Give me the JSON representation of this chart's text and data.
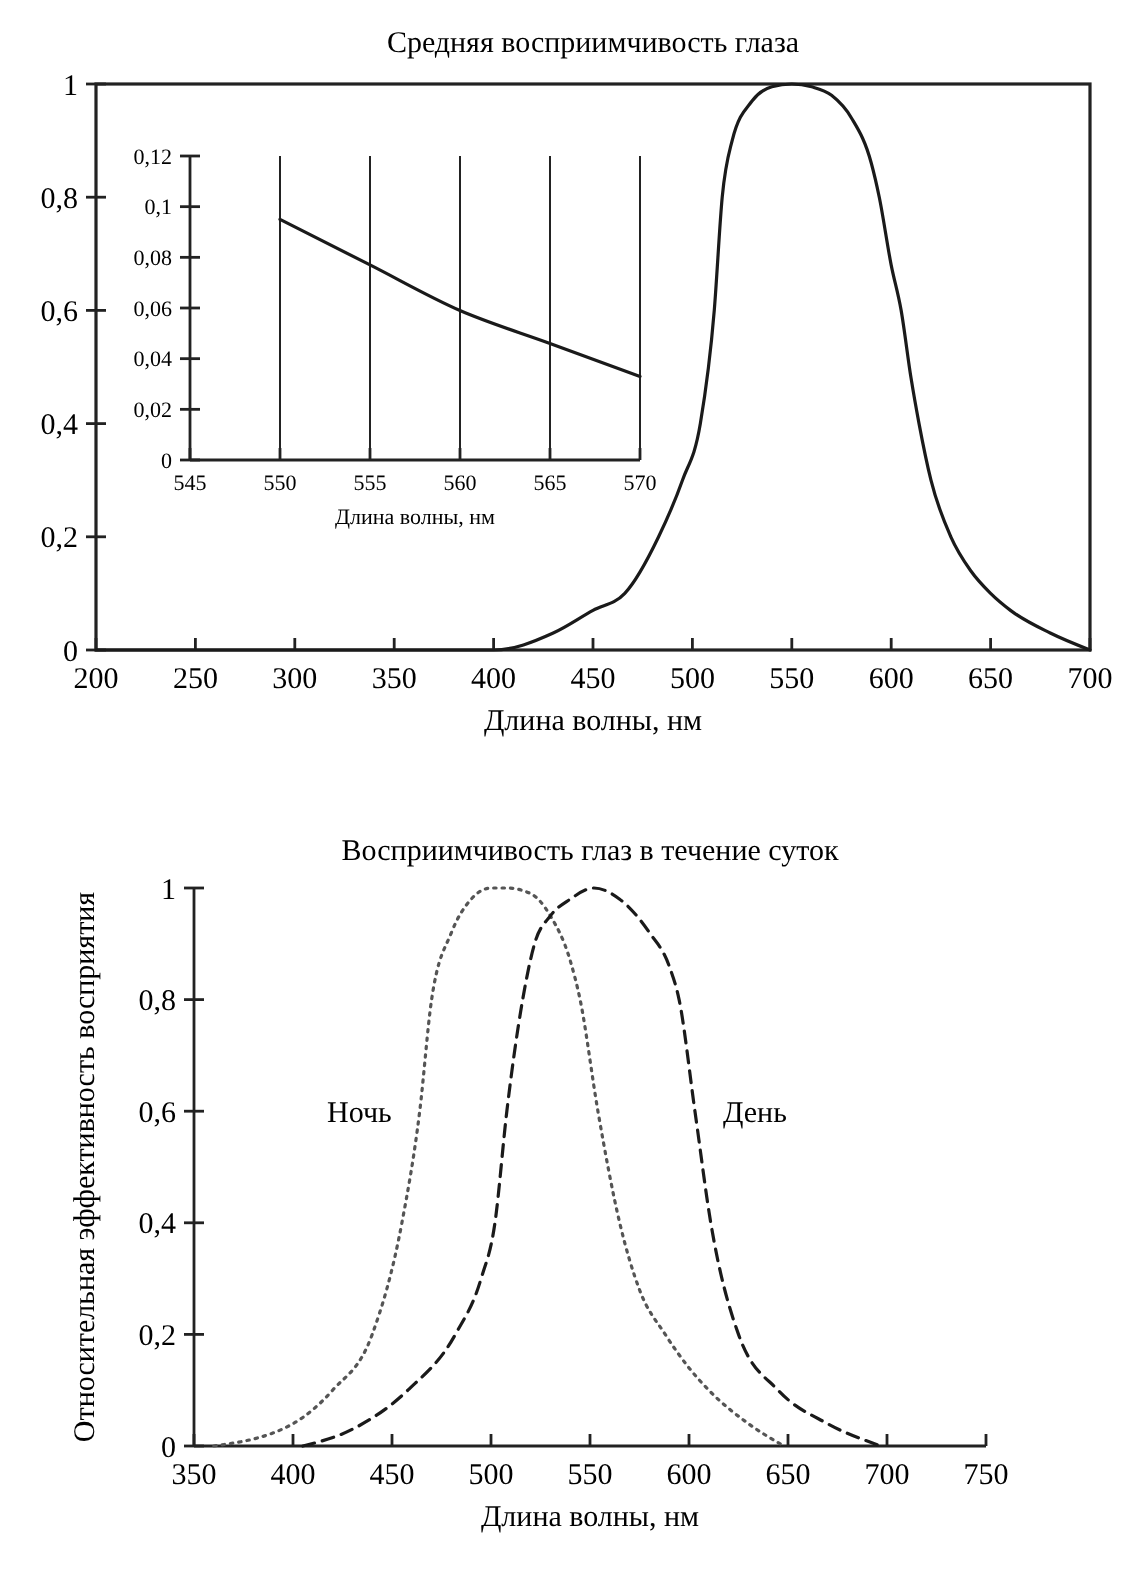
{
  "chart_data": [
    {
      "type": "line",
      "title": "Средняя восприимчивость глаза",
      "xlabel": "Длина волны, нм",
      "xlim": [
        200,
        700
      ],
      "xticks": [
        200,
        250,
        300,
        350,
        400,
        450,
        500,
        550,
        600,
        650,
        700
      ],
      "ylim": [
        0,
        1
      ],
      "yticks": [
        {
          "value": 0,
          "label": "0"
        },
        {
          "value": 0.2,
          "label": "0,2"
        },
        {
          "value": 0.4,
          "label": "0,4"
        },
        {
          "value": 0.6,
          "label": "0,6"
        },
        {
          "value": 0.8,
          "label": "0,8"
        },
        {
          "value": 1,
          "label": "1"
        }
      ],
      "grid": false,
      "legend": false,
      "series": [
        {
          "color": "#1a1a1a",
          "line_style": "solid",
          "x": [
            200,
            400,
            430,
            450,
            466,
            483,
            495,
            504,
            511,
            515,
            520,
            530,
            540,
            550,
            560,
            570,
            580,
            590,
            594,
            600,
            605,
            610,
            614,
            620,
            630,
            640,
            650,
            660,
            680,
            700
          ],
          "values": [
            0,
            0,
            0.03,
            0.07,
            0.1,
            0.2,
            0.3,
            0.4,
            0.6,
            0.8,
            0.9,
            0.97,
            0.995,
            1,
            0.995,
            0.98,
            0.94,
            0.86,
            0.8,
            0.68,
            0.6,
            0.48,
            0.4,
            0.3,
            0.2,
            0.14,
            0.1,
            0.07,
            0.03,
            0
          ]
        }
      ]
    },
    {
      "type": "line",
      "xlabel": "Длина волны, нм",
      "xlim": [
        545,
        570
      ],
      "xticks": [
        545,
        550,
        555,
        560,
        565,
        570
      ],
      "ylim": [
        0,
        0.12
      ],
      "yticks": [
        {
          "value": 0,
          "label": "0"
        },
        {
          "value": 0.02,
          "label": "0,02"
        },
        {
          "value": 0.04,
          "label": "0,04"
        },
        {
          "value": 0.06,
          "label": "0,06"
        },
        {
          "value": 0.08,
          "label": "0,08"
        },
        {
          "value": 0.1,
          "label": "0,1"
        },
        {
          "value": 0.12,
          "label": "0,12"
        }
      ],
      "grid": "x",
      "legend": false,
      "series": [
        {
          "color": "#1a1a1a",
          "line_style": "solid",
          "x": [
            550,
            555,
            560,
            565,
            570
          ],
          "values": [
            0.095,
            0.077,
            0.059,
            0.046,
            0.033
          ]
        }
      ]
    },
    {
      "type": "line",
      "title": "Восприимчивость глаз в течение суток",
      "xlabel": "Длина волны, нм",
      "ylabel": "Относительная эффективность восприятия",
      "xlim": [
        350,
        750
      ],
      "xticks": [
        350,
        400,
        450,
        500,
        550,
        600,
        650,
        700,
        750
      ],
      "ylim": [
        0,
        1
      ],
      "yticks": [
        {
          "value": 0,
          "label": "0"
        },
        {
          "value": 0.2,
          "label": "0,2"
        },
        {
          "value": 0.4,
          "label": "0,4"
        },
        {
          "value": 0.6,
          "label": "0,6"
        },
        {
          "value": 0.8,
          "label": "0,8"
        },
        {
          "value": 1,
          "label": "1"
        }
      ],
      "grid": false,
      "legend": false,
      "series": [
        {
          "name": "Ночь",
          "color": "#555555",
          "line_style": "dotted",
          "x": [
            360,
            400,
            420,
            440,
            455,
            464,
            470,
            480,
            490,
            500,
            508,
            520,
            530,
            540,
            545,
            554,
            565,
            575,
            588,
            600,
            610,
            630,
            648
          ],
          "values": [
            0,
            0.04,
            0.1,
            0.2,
            0.4,
            0.6,
            0.8,
            0.92,
            0.98,
            1,
            1,
            0.99,
            0.95,
            0.87,
            0.8,
            0.6,
            0.4,
            0.28,
            0.2,
            0.14,
            0.1,
            0.04,
            0
          ]
        },
        {
          "name": "День",
          "color": "#1a1a1a",
          "line_style": "dashed",
          "x": [
            405,
            430,
            458,
            482,
            495,
            502,
            508,
            516,
            522,
            530,
            540,
            552,
            565,
            580,
            590,
            595,
            603,
            611,
            625,
            645,
            670,
            697
          ],
          "values": [
            0,
            0.03,
            0.1,
            0.2,
            0.3,
            0.4,
            0.6,
            0.8,
            0.9,
            0.95,
            0.98,
            1,
            0.98,
            0.92,
            0.86,
            0.8,
            0.6,
            0.4,
            0.2,
            0.1,
            0.04,
            0
          ]
        }
      ]
    }
  ]
}
